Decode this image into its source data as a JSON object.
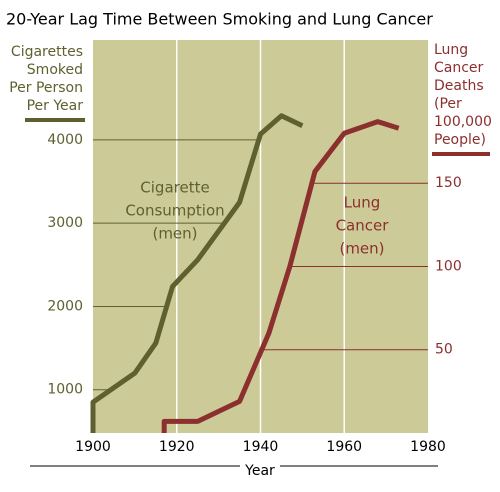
{
  "chart_data": {
    "type": "line",
    "title": "20-Year Lag Time Between Smoking and Lung Cancer",
    "x_label": "Year",
    "y_label": [
      "Cigarettes",
      "Smoked",
      "Per Person",
      "Per Year"
    ],
    "y2_label": [
      "Lung",
      "Cancer",
      "Deaths",
      "(Per",
      "100,000",
      "People)"
    ],
    "xlim": [
      1900,
      1980
    ],
    "xticks": [
      1900,
      1920,
      1940,
      1960,
      1980
    ],
    "ylim": [
      480,
      5200
    ],
    "yticks": [
      1000,
      2000,
      3000,
      4000
    ],
    "y2lim": [
      0,
      236
    ],
    "y2ticks": [
      50,
      100,
      150
    ],
    "series": [
      {
        "name": [
          "Cigarette",
          "Consumption",
          "(men)"
        ],
        "color": "#5e602f",
        "x": [
          1900,
          1900,
          1910,
          1915,
          1919,
          1925,
          1935,
          1940,
          1945,
          1950
        ],
        "values": [
          480,
          850,
          1200,
          1560,
          2240,
          2560,
          3250,
          4070,
          4290,
          4170
        ]
      },
      {
        "name": [
          "Lung",
          "Cancer",
          "(men)"
        ],
        "color": "#8c2f2f",
        "axis": "y2",
        "x": [
          1917,
          1917,
          1925,
          1935,
          1942,
          1947,
          1953,
          1960,
          1968,
          1973
        ],
        "values": [
          0,
          7,
          7,
          19,
          60,
          100,
          157,
          180,
          187,
          183
        ]
      }
    ]
  }
}
